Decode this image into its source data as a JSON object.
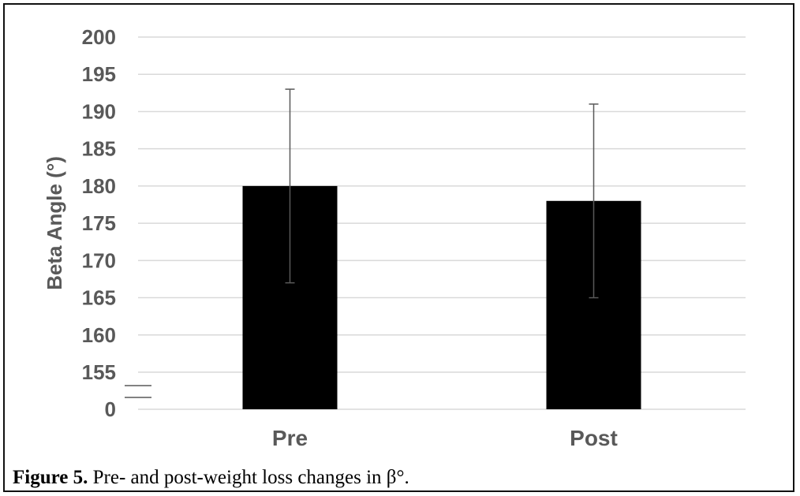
{
  "chart_data": {
    "type": "bar",
    "categories": [
      "Pre",
      "Post"
    ],
    "values": [
      180,
      178
    ],
    "error_low": [
      167,
      165
    ],
    "error_high": [
      193,
      191
    ],
    "ylabel": "Beta Angle (°)",
    "xlabel": "",
    "ylim": [
      155,
      200
    ],
    "axis_break": true,
    "yticks": [
      "200",
      "195",
      "190",
      "185",
      "180",
      "175",
      "170",
      "165",
      "160",
      "155",
      "0"
    ],
    "grid": true,
    "bar_color": "#000000",
    "error_bar_color": "#595959"
  },
  "caption": {
    "label": "Figure 5.",
    "text": " Pre- and post-weight loss changes in β°."
  }
}
